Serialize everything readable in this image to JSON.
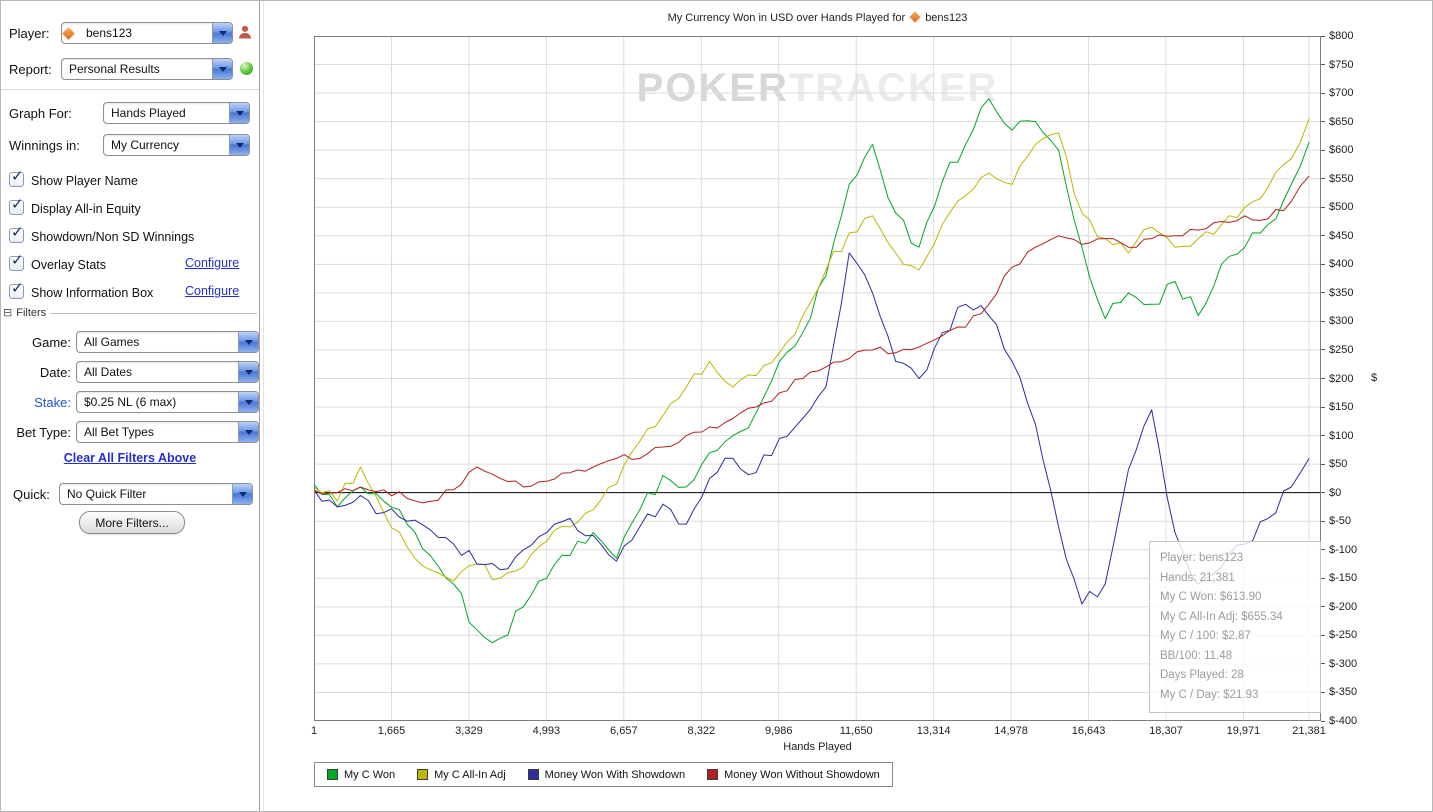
{
  "sidebar": {
    "player": {
      "label": "Player:",
      "value": "bens123"
    },
    "report": {
      "label": "Report:",
      "value": "Personal Results"
    },
    "graph_for": {
      "label": "Graph For:",
      "value": "Hands Played"
    },
    "winnings_in": {
      "label": "Winnings in:",
      "value": "My Currency"
    },
    "checkboxes": [
      {
        "label": "Show Player Name",
        "checked": true
      },
      {
        "label": "Display All-in Equity",
        "checked": true
      },
      {
        "label": "Showdown/Non SD Winnings",
        "checked": true
      },
      {
        "label": "Overlay Stats",
        "checked": true,
        "link": "Configure"
      },
      {
        "label": "Show Information Box",
        "checked": true,
        "link": "Configure"
      }
    ],
    "filters": {
      "header": "Filters",
      "game": {
        "label": "Game:",
        "value": "All Games"
      },
      "date": {
        "label": "Date:",
        "value": "All Dates"
      },
      "stake": {
        "label": "Stake:",
        "value": "$0.25 NL (6 max)"
      },
      "bet_type": {
        "label": "Bet Type:",
        "value": "All Bet Types"
      },
      "clear_link": "Clear All Filters Above",
      "quick": {
        "label": "Quick:",
        "value": "No Quick Filter"
      },
      "more_filters": "More Filters..."
    }
  },
  "chart": {
    "title_prefix": "My Currency Won in USD over Hands Played for",
    "title_player": "bens123",
    "watermark_bold": "POKER",
    "watermark_light": "TRACKER",
    "x_axis_title": "Hands Played",
    "y_axis_unit": "$"
  },
  "info_box": {
    "lines": [
      "Player: bens123",
      "Hands: 21,381",
      "My C Won: $613.90",
      "My C All-In Adj: $655.34",
      "My C / 100: $2.87",
      "BB/100: 11.48",
      "Days Played: 28",
      "My C / Day: $21.93"
    ]
  },
  "chart_data": {
    "type": "line",
    "title": "My Currency Won in USD over Hands Played for bens123",
    "xlabel": "Hands Played",
    "ylabel": "$ (USD won)",
    "xlim": [
      1,
      21381
    ],
    "ylim": [
      -400,
      800
    ],
    "y_tick_step": 50,
    "grid": true,
    "legend_position": "bottom",
    "x_ticks": [
      1,
      1665,
      3329,
      4993,
      6657,
      8322,
      9986,
      11650,
      13314,
      14978,
      16643,
      18307,
      19971,
      21381
    ],
    "x_tick_labels": [
      "1",
      "1,665",
      "3,329",
      "4,993",
      "6,657",
      "8,322",
      "9,986",
      "11,650",
      "13,314",
      "14,978",
      "16,643",
      "18,307",
      "19,971",
      "21,381"
    ],
    "x": [
      1,
      500,
      1000,
      1500,
      2000,
      2500,
      3000,
      3500,
      4000,
      4500,
      5000,
      5500,
      6000,
      6500,
      7000,
      7500,
      8000,
      8500,
      9000,
      9500,
      10000,
      10500,
      11000,
      11500,
      12000,
      12500,
      13000,
      13500,
      14000,
      14500,
      15000,
      15500,
      16000,
      16500,
      17000,
      17500,
      18000,
      18500,
      19000,
      19500,
      20000,
      20500,
      21000,
      21381
    ],
    "series": [
      {
        "name": "My C Won",
        "color": "#00a820",
        "values": [
          15,
          -25,
          10,
          -15,
          -55,
          -110,
          -160,
          -240,
          -255,
          -200,
          -150,
          -110,
          -70,
          -115,
          -30,
          30,
          10,
          70,
          100,
          140,
          230,
          280,
          380,
          540,
          610,
          490,
          430,
          545,
          610,
          690,
          635,
          650,
          600,
          430,
          305,
          350,
          330,
          370,
          310,
          400,
          430,
          470,
          540,
          613.9
        ]
      },
      {
        "name": "My C All-In Adj",
        "color": "#bdb700",
        "values": [
          10,
          -15,
          45,
          -35,
          -95,
          -135,
          -155,
          -125,
          -150,
          -130,
          -85,
          -60,
          -30,
          15,
          90,
          135,
          185,
          230,
          185,
          205,
          245,
          310,
          390,
          455,
          485,
          420,
          390,
          470,
          520,
          560,
          540,
          610,
          630,
          490,
          445,
          420,
          465,
          430,
          445,
          470,
          500,
          535,
          585,
          655.34
        ]
      },
      {
        "name": "Money Won With Showdown",
        "color": "#2c2ca0",
        "values": [
          5,
          -25,
          -5,
          -35,
          -50,
          -65,
          -90,
          -125,
          -135,
          -100,
          -70,
          -45,
          -75,
          -120,
          -60,
          -20,
          -55,
          25,
          60,
          35,
          95,
          130,
          185,
          420,
          350,
          230,
          200,
          280,
          330,
          310,
          230,
          120,
          -60,
          -195,
          -160,
          40,
          145,
          -70,
          -160,
          -130,
          -90,
          -45,
          10,
          60
        ]
      },
      {
        "name": "Money Won Without Showdown",
        "color": "#b02020",
        "values": [
          5,
          0,
          10,
          5,
          -10,
          -15,
          5,
          45,
          25,
          10,
          20,
          35,
          45,
          60,
          60,
          80,
          100,
          115,
          130,
          150,
          175,
          200,
          220,
          235,
          250,
          245,
          255,
          275,
          290,
          330,
          395,
          430,
          450,
          435,
          445,
          430,
          445,
          450,
          460,
          475,
          485,
          480,
          510,
          555
        ]
      }
    ]
  }
}
